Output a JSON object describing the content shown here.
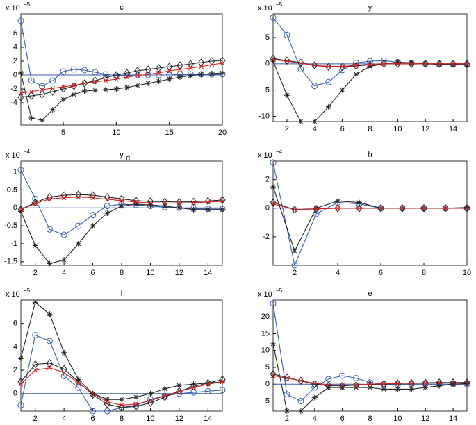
{
  "chart_data": [
    {
      "type": "line",
      "title": "c",
      "y_scale": {
        "base": "x 10",
        "exponent": "−5"
      },
      "x": [
        1,
        2,
        3,
        4,
        5,
        6,
        7,
        8,
        9,
        10,
        11,
        12,
        13,
        14,
        15,
        16,
        17,
        18,
        19,
        20
      ],
      "xlim": [
        1,
        20
      ],
      "xticks": [
        5,
        10,
        15,
        20
      ],
      "ylim": [
        -7.2,
        8.8
      ],
      "yticks": [
        -4,
        -2,
        0,
        2,
        4,
        6
      ],
      "hline": 0,
      "series": [
        {
          "color": "#3a5fb0",
          "marker": "circle",
          "values": [
            7.8,
            -0.8,
            -1.6,
            -0.8,
            0.5,
            0.8,
            0.7,
            0.4,
            0.1,
            -0.1,
            -0.1,
            0,
            0,
            0,
            0,
            0.1,
            0.1,
            0.1,
            0.1,
            0.1
          ]
        },
        {
          "color": "#222222",
          "marker": "star",
          "values": [
            0.3,
            -6.2,
            -6.5,
            -5,
            -3.5,
            -2.8,
            -2.3,
            -2.2,
            -2.1,
            -2.0,
            -1.8,
            -1.5,
            -1.2,
            -0.9,
            -0.6,
            -0.3,
            -0.1,
            0.1,
            0.2,
            0.3
          ]
        },
        {
          "color": "#222222",
          "marker": "diamond",
          "values": [
            -3.2,
            -3.0,
            -2.8,
            -2.4,
            -2.0,
            -1.6,
            -1.2,
            -0.8,
            -0.4,
            0,
            0.3,
            0.6,
            0.8,
            1.0,
            1.2,
            1.4,
            1.6,
            1.8,
            2.0,
            2.1
          ]
        },
        {
          "color": "#d62020",
          "marker": "x",
          "values": [
            -2.6,
            -2.4,
            -2.1,
            -1.9,
            -1.7,
            -1.5,
            -1.2,
            -1.0,
            -0.8,
            -0.6,
            -0.3,
            -0.1,
            0.1,
            0.3,
            0.6,
            0.8,
            1.0,
            1.2,
            1.5,
            1.7
          ]
        }
      ]
    },
    {
      "type": "line",
      "title": "y",
      "y_scale": {
        "base": "x 10",
        "exponent": "−5"
      },
      "x": [
        1,
        2,
        3,
        4,
        5,
        6,
        7,
        8,
        9,
        10,
        11,
        12,
        13,
        14,
        15
      ],
      "xlim": [
        1,
        15
      ],
      "xticks": [
        2,
        4,
        6,
        8,
        10,
        12,
        14
      ],
      "ylim": [
        -11,
        9.5
      ],
      "yticks": [
        -10,
        -5,
        0,
        5
      ],
      "hline": 0,
      "series": [
        {
          "color": "#3a5fb0",
          "marker": "circle",
          "values": [
            8.8,
            5.5,
            -1,
            -4.2,
            -3.5,
            -1.2,
            0.2,
            0.5,
            0.6,
            0.3,
            0.1,
            0,
            -0.1,
            -0.1,
            -0.2
          ]
        },
        {
          "color": "#222222",
          "marker": "star",
          "values": [
            0.5,
            -6,
            -11,
            -11,
            -8.2,
            -5,
            -2,
            -0.5,
            0,
            0.3,
            0.2,
            0,
            -0.1,
            -0.2,
            -0.2
          ]
        },
        {
          "color": "#222222",
          "marker": "diamond",
          "values": [
            1,
            0.6,
            0.2,
            -0.3,
            -0.6,
            -0.6,
            -0.4,
            -0.2,
            0,
            0,
            0,
            0,
            0,
            0,
            0
          ]
        },
        {
          "color": "#d62020",
          "marker": "x",
          "values": [
            0.8,
            0.5,
            0.1,
            -0.3,
            -0.5,
            -0.5,
            -0.3,
            -0.1,
            0,
            0,
            0,
            0,
            0,
            0,
            0
          ]
        }
      ]
    },
    {
      "type": "line",
      "title": "y",
      "title_sub": "d",
      "y_scale": {
        "base": "x 10",
        "exponent": "−4"
      },
      "x": [
        1,
        2,
        3,
        4,
        5,
        6,
        7,
        8,
        9,
        10,
        11,
        12,
        13,
        14,
        15
      ],
      "xlim": [
        1,
        15
      ],
      "xticks": [
        2,
        4,
        6,
        8,
        10,
        12,
        14
      ],
      "ylim": [
        -1.6,
        1.3
      ],
      "yticks": [
        -1.5,
        -1,
        -0.5,
        0,
        0.5,
        1
      ],
      "hline": 0,
      "series": [
        {
          "color": "#3a5fb0",
          "marker": "circle",
          "values": [
            1.05,
            0.25,
            -0.6,
            -0.75,
            -0.5,
            -0.2,
            0.05,
            0.1,
            0.08,
            0.05,
            0.02,
            0,
            -0.02,
            -0.03,
            -0.03
          ]
        },
        {
          "color": "#222222",
          "marker": "star",
          "values": [
            -0.1,
            -1.05,
            -1.55,
            -1.45,
            -1.0,
            -0.5,
            -0.15,
            0.05,
            0.1,
            0.08,
            0.05,
            0,
            -0.05,
            -0.05,
            -0.05
          ]
        },
        {
          "color": "#222222",
          "marker": "diamond",
          "values": [
            -0.05,
            0.15,
            0.3,
            0.35,
            0.37,
            0.35,
            0.3,
            0.25,
            0.2,
            0.18,
            0.17,
            0.16,
            0.17,
            0.19,
            0.22
          ]
        },
        {
          "color": "#d62020",
          "marker": "x",
          "values": [
            -0.05,
            0.12,
            0.25,
            0.28,
            0.3,
            0.28,
            0.24,
            0.2,
            0.16,
            0.14,
            0.13,
            0.13,
            0.14,
            0.16,
            0.18
          ]
        }
      ]
    },
    {
      "type": "line",
      "title": "h",
      "y_scale": {
        "base": "x 10",
        "exponent": "−4"
      },
      "x": [
        1,
        2,
        3,
        4,
        5,
        6,
        7,
        8,
        9,
        10
      ],
      "xlim": [
        1,
        10
      ],
      "xticks": [
        2,
        4,
        6,
        8,
        10
      ],
      "ylim": [
        -4,
        3.3
      ],
      "yticks": [
        -2,
        0,
        2
      ],
      "hline": 0,
      "series": [
        {
          "color": "#3a5fb0",
          "marker": "circle",
          "values": [
            3.2,
            -4,
            -0.4,
            0.4,
            0.3,
            0,
            0,
            0,
            0,
            0
          ]
        },
        {
          "color": "#222222",
          "marker": "star",
          "values": [
            1.5,
            -3,
            0,
            0.5,
            0.4,
            0,
            0,
            0,
            0,
            0.05
          ]
        },
        {
          "color": "#222222",
          "marker": "diamond",
          "values": [
            0.4,
            -0.1,
            -0.05,
            0,
            0,
            0,
            0,
            0,
            0,
            0
          ]
        },
        {
          "color": "#d62020",
          "marker": "x",
          "values": [
            0.3,
            -0.1,
            -0.05,
            0,
            0,
            0,
            0,
            0,
            0,
            0
          ]
        }
      ]
    },
    {
      "type": "line",
      "title": "l",
      "y_scale": {
        "base": "x 10",
        "exponent": "−5"
      },
      "x": [
        1,
        2,
        3,
        4,
        5,
        6,
        7,
        8,
        9,
        10,
        11,
        12,
        13,
        14,
        15
      ],
      "xlim": [
        1,
        15
      ],
      "xticks": [
        2,
        4,
        6,
        8,
        10,
        12,
        14
      ],
      "ylim": [
        -1.5,
        8
      ],
      "yticks": [
        0,
        2,
        4,
        6
      ],
      "hline": 0,
      "series": [
        {
          "color": "#3a5fb0",
          "marker": "circle",
          "values": [
            -1,
            5,
            4.5,
            1.5,
            0.5,
            -1.5,
            -1.5,
            -1.2,
            -1,
            -0.5,
            -0.2,
            0,
            0.1,
            0.2,
            0.3
          ]
        },
        {
          "color": "#222222",
          "marker": "star",
          "values": [
            3,
            7.8,
            6.8,
            3.5,
            1.2,
            0,
            -0.5,
            -0.5,
            -0.3,
            0,
            0.4,
            0.7,
            0.8,
            0.9,
            1.0
          ]
        },
        {
          "color": "#222222",
          "marker": "diamond",
          "values": [
            1,
            2.5,
            2.6,
            2.1,
            1,
            -0.1,
            -0.9,
            -1.2,
            -1.1,
            -0.8,
            -0.3,
            0.2,
            0.6,
            0.9,
            1.2
          ]
        },
        {
          "color": "#d62020",
          "marker": "x",
          "values": [
            0.8,
            2,
            2.2,
            1.8,
            0.9,
            0,
            -0.7,
            -1.0,
            -0.9,
            -0.6,
            -0.2,
            0.2,
            0.5,
            0.8,
            1.0
          ]
        }
      ]
    },
    {
      "type": "line",
      "title": "e",
      "y_scale": {
        "base": "x 10",
        "exponent": "−5"
      },
      "x": [
        1,
        2,
        3,
        4,
        5,
        6,
        7,
        8,
        9,
        10,
        11,
        12,
        13,
        14,
        15
      ],
      "xlim": [
        1,
        15
      ],
      "xticks": [
        2,
        4,
        6,
        8,
        10,
        12,
        14
      ],
      "ylim": [
        -8,
        25
      ],
      "yticks": [
        -5,
        0,
        5,
        10,
        15,
        20
      ],
      "hline": 0,
      "series": [
        {
          "color": "#3a5fb0",
          "marker": "circle",
          "values": [
            24,
            -3,
            -5,
            -1,
            1.5,
            2.5,
            1.8,
            0.5,
            0,
            -0.2,
            0,
            0,
            0,
            0,
            0
          ]
        },
        {
          "color": "#222222",
          "marker": "star",
          "values": [
            12,
            -8,
            -8,
            -4,
            -1,
            -1,
            -1,
            -1,
            -1.5,
            -1.5,
            -1.5,
            -1,
            -0.5,
            0,
            0.2
          ]
        },
        {
          "color": "#222222",
          "marker": "diamond",
          "values": [
            3,
            2,
            1,
            0,
            -0.5,
            -0.5,
            -0.3,
            -0.1,
            0,
            0.2,
            0.3,
            0.4,
            0.5,
            0.5,
            0.5
          ]
        },
        {
          "color": "#d62020",
          "marker": "x",
          "values": [
            2.5,
            1.8,
            1,
            0.3,
            -0.2,
            -0.3,
            -0.2,
            0,
            0.1,
            0.2,
            0.3,
            0.3,
            0.4,
            0.4,
            0.4
          ]
        }
      ]
    }
  ]
}
